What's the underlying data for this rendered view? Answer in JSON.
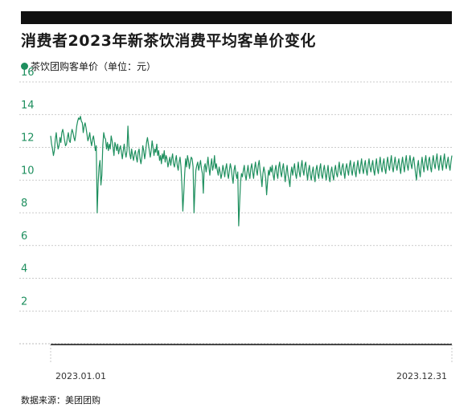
{
  "title": "消费者2023年新茶饮消费平均客单价变化",
  "legend": {
    "label": "茶饮团购客单价（单位：元）"
  },
  "source": "数据来源：美团团购",
  "colors": {
    "series": "#1e8f5e",
    "grid": "#bbbbbb",
    "axis": "#111111",
    "bar": "#111111"
  },
  "chart_data": {
    "type": "line",
    "title": "消费者2023年新茶饮消费平均客单价变化",
    "xlabel": "",
    "ylabel": "",
    "ylim": [
      0,
      16
    ],
    "yticks": [
      2,
      4,
      6,
      8,
      10,
      12,
      14,
      16
    ],
    "x_tick_labels": [
      "2023.01.01",
      "2023.12.31"
    ],
    "x_range": [
      "2023-01-01",
      "2023-12-31"
    ],
    "grid": "horizontal dashed",
    "legend_position": "top-left",
    "series": [
      {
        "name": "茶饮团购客单价（单位：元）",
        "values": [
          12.7,
          12.2,
          11.9,
          11.5,
          11.8,
          12.5,
          12.9,
          12.3,
          11.9,
          12.1,
          12.6,
          12.3,
          12.9,
          13.1,
          12.8,
          12.4,
          12.1,
          12.2,
          12.6,
          12.9,
          12.4,
          12.3,
          12.8,
          13.1,
          12.9,
          12.6,
          12.4,
          12.8,
          13.3,
          13.6,
          13.8,
          13.7,
          13.9,
          13.6,
          13.5,
          12.9,
          13.3,
          13.5,
          13.2,
          12.8,
          12.4,
          12.6,
          12.9,
          12.4,
          12.1,
          12.5,
          12.7,
          12.3,
          11.8,
          12.1,
          8.0,
          9.8,
          10.8,
          11.2,
          9.7,
          10.3,
          12.1,
          12.9,
          12.6,
          12.5,
          11.9,
          12.3,
          11.8,
          12.2,
          11.9,
          12.7,
          12.4,
          12.0,
          11.5,
          12.3,
          12.1,
          11.8,
          12.2,
          11.6,
          11.9,
          12.1,
          11.7,
          11.3,
          11.8,
          12.2,
          11.7,
          11.4,
          11.8,
          13.3,
          12.1,
          11.6,
          11.3,
          11.9,
          11.5,
          11.2,
          11.6,
          11.8,
          11.4,
          11.1,
          11.7,
          11.9,
          11.3,
          11.0,
          11.4,
          12.1,
          11.8,
          11.3,
          11.7,
          12.3,
          12.6,
          12.2,
          11.8,
          11.4,
          11.8,
          12.4,
          12.0,
          11.5,
          11.9,
          11.7,
          12.2,
          11.5,
          11.8,
          11.2,
          11.5,
          11.0,
          11.6,
          11.3,
          11.8,
          11.1,
          11.5,
          11.3,
          10.8,
          11.1,
          11.4,
          10.9,
          11.3,
          11.6,
          11.0,
          10.8,
          11.2,
          11.5,
          10.9,
          10.6,
          11.1,
          11.4,
          10.8,
          9.7,
          8.1,
          9.2,
          10.4,
          11.3,
          10.8,
          11.5,
          11.2,
          10.7,
          11.1,
          11.4,
          11.3,
          10.8,
          8.0,
          9.5,
          10.6,
          10.9,
          11.1,
          10.6,
          10.9,
          11.2,
          10.7,
          10.4,
          9.2,
          10.8,
          11.0,
          10.5,
          10.9,
          11.4,
          10.8,
          10.3,
          10.9,
          11.3,
          10.6,
          10.9,
          11.5,
          10.7,
          11.0,
          10.6,
          10.3,
          10.8,
          10.5,
          10.1,
          10.4,
          10.9,
          10.6,
          10.2,
          10.7,
          11.0,
          10.4,
          10.1,
          10.6,
          11.0,
          10.7,
          10.2,
          9.8,
          10.6,
          10.9,
          10.4,
          10.1,
          10.5,
          7.2,
          8.6,
          9.9,
          10.4,
          10.2,
          10.6,
          10.9,
          10.3,
          10.0,
          10.5,
          10.9,
          10.4,
          10.1,
          10.7,
          11.0,
          10.5,
          10.1,
          10.7,
          11.1,
          10.6,
          10.3,
          10.9,
          11.2,
          10.6,
          10.2,
          9.6,
          10.4,
          10.8,
          10.5,
          10.1,
          9.1,
          9.9,
          10.6,
          10.3,
          10.8,
          10.5,
          10.9,
          10.3,
          10.0,
          10.6,
          10.9,
          10.4,
          10.1,
          10.8,
          11.1,
          10.5,
          10.2,
          10.7,
          11.0,
          10.4,
          9.9,
          10.5,
          10.9,
          10.3,
          10.0,
          9.6,
          10.4,
          10.8,
          10.3,
          10.7,
          11.0,
          10.4,
          10.1,
          10.6,
          11.1,
          10.5,
          10.2,
          10.8,
          11.2,
          10.6,
          10.3,
          10.9,
          11.1,
          10.5,
          10.0,
          10.6,
          10.9,
          10.3,
          10.0,
          10.5,
          10.8,
          10.2,
          9.9,
          10.6,
          10.9,
          10.4,
          10.1,
          10.7,
          11.0,
          10.3,
          10.1,
          10.6,
          10.9,
          10.4,
          10.0,
          10.5,
          10.9,
          10.2,
          9.9,
          10.5,
          10.8,
          10.3,
          10.0,
          10.6,
          10.9,
          10.4,
          10.2,
          10.7,
          11.1,
          10.5,
          10.3,
          10.8,
          11.0,
          10.5,
          10.1,
          10.7,
          11.0,
          10.6,
          10.3,
          10.9,
          11.2,
          10.6,
          10.3,
          10.8,
          11.1,
          10.5,
          10.2,
          10.8,
          11.2,
          10.7,
          10.4,
          10.9,
          11.3,
          10.7,
          10.4,
          10.9,
          11.2,
          10.6,
          10.3,
          10.9,
          11.3,
          10.8,
          10.5,
          10.9,
          11.2,
          10.6,
          10.3,
          10.9,
          11.3,
          10.7,
          10.4,
          11.0,
          11.4,
          10.8,
          10.5,
          11.0,
          11.3,
          10.7,
          10.4,
          11.0,
          11.4,
          10.9,
          10.6,
          11.1,
          11.5,
          10.8,
          10.5,
          11.0,
          11.4,
          10.9,
          10.6,
          11.0,
          11.3,
          10.8,
          10.4,
          11.0,
          11.4,
          10.9,
          10.5,
          11.1,
          11.5,
          10.9,
          10.6,
          11.1,
          11.5,
          11.0,
          10.7,
          11.2,
          11.4,
          10.9,
          10.4,
          10.0,
          10.8,
          11.2,
          10.6,
          10.2,
          10.9,
          11.4,
          10.9,
          10.5,
          11.1,
          11.5,
          10.9,
          10.6,
          11.2,
          11.4,
          10.8,
          10.5,
          11.1,
          11.5,
          11.0,
          10.7,
          11.2,
          11.6,
          11.0,
          10.6,
          11.1,
          11.5,
          11.0,
          10.6,
          11.2,
          11.6,
          11.0,
          10.7,
          11.1,
          11.4,
          10.9,
          10.6,
          11.1,
          11.5
        ]
      }
    ]
  }
}
